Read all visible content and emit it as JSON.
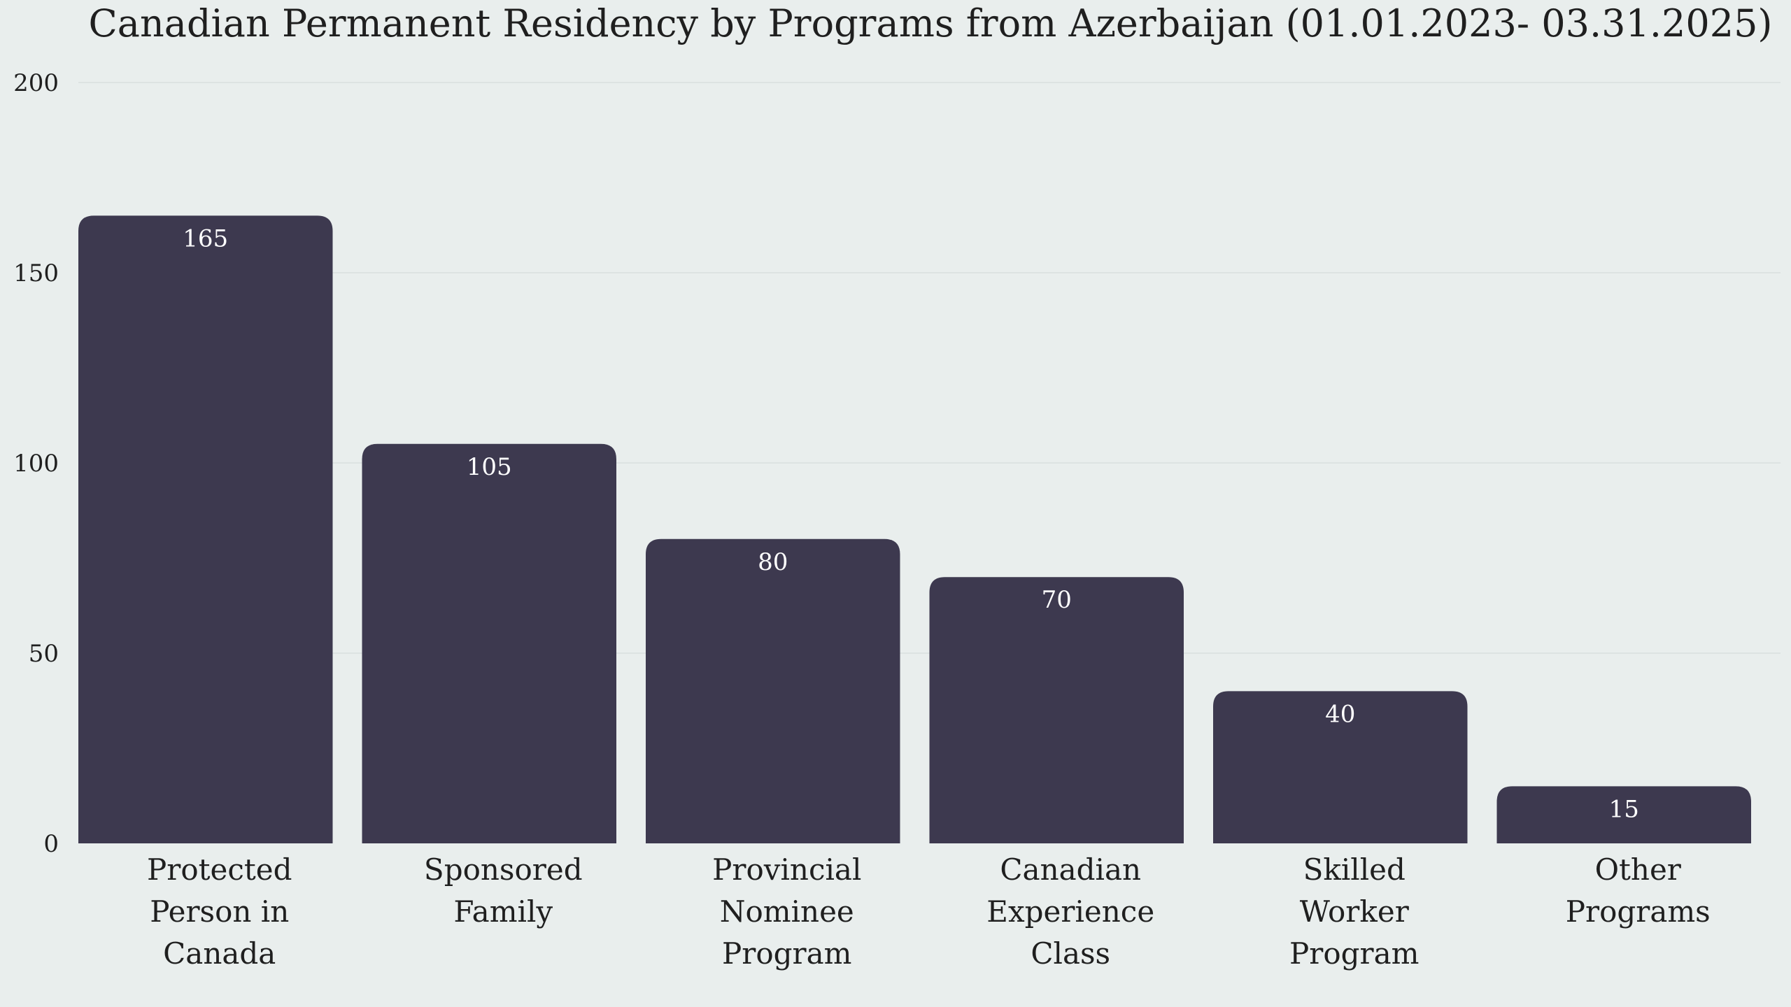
{
  "chart_data": {
    "type": "bar",
    "title": "Canadian Permanent Residency by Programs from Azerbaijan (01.01.2023- 03.31.2025)",
    "xlabel": "",
    "ylabel": "",
    "ylim": [
      0,
      200
    ],
    "y_ticks": [
      "0",
      "50",
      "100",
      "150",
      "200"
    ],
    "grid": true,
    "legend": "none",
    "categories": [
      [
        "Protected",
        "Person in",
        "Canada"
      ],
      [
        "Sponsored",
        "Family"
      ],
      [
        "Provincial",
        "Nominee",
        "Program"
      ],
      [
        "Canadian",
        "Experience",
        "Class"
      ],
      [
        "Skilled",
        "Worker",
        "Program"
      ],
      [
        "Other",
        "Programs"
      ]
    ],
    "values": [
      165,
      105,
      80,
      70,
      40,
      15
    ],
    "value_labels": [
      "165",
      "105",
      "80",
      "70",
      "40",
      "15"
    ],
    "bar_color": "#3d394f"
  }
}
